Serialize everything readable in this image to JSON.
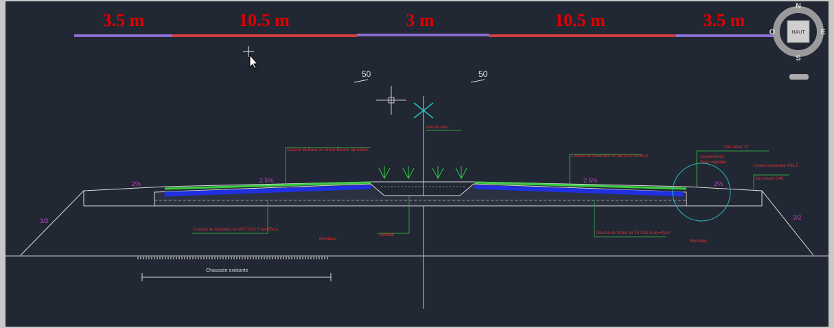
{
  "dimensions": [
    "3.5 m",
    "10.5 m",
    "3 m",
    "10.5 m",
    "3.5 m"
  ],
  "viewcube": {
    "north": "N",
    "south": "S",
    "east": "E",
    "west": "O",
    "face": "HAUT"
  },
  "slopes": {
    "left_mark": "50",
    "right_mark": "50",
    "left_talus": "3/2",
    "right_talus": "3/2",
    "left_grade": "2%",
    "left_lane": "2.5%",
    "right_lane": "2.5%",
    "right_grade": "2%"
  },
  "labels": {
    "axis": "Axe en plan",
    "base_course": "Couche de Base en Grave Bitume ep=15cm",
    "wearing_course": "Couche de roulement en BB 0/14 ep=6cm",
    "subbase": "Couche de fondation en GNT 0/31.5 ep=25cm",
    "capping": "Couche de forme en TV 0/31.5 ep=40cm",
    "fill_left": "Remblais",
    "median_fill": "Remblai",
    "fill_right": "Remblais",
    "shoulder_a": "Accotements",
    "shoulder_b": "Terre végétale",
    "detail": "Voir détail \"A\"",
    "gravel": "Grave concassée 0/31.5",
    "soil_cement": "Sol ciment 0/40",
    "existing": "Chaussée existante"
  }
}
